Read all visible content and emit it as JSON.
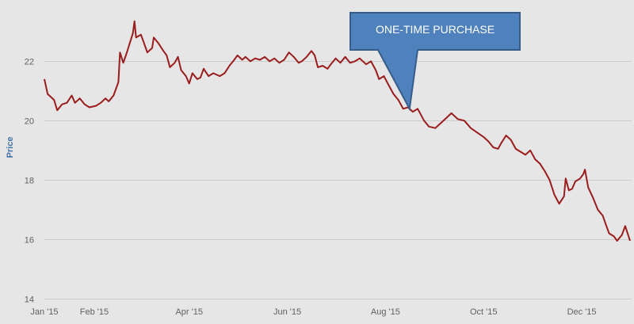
{
  "chart_data": {
    "type": "line",
    "ylabel": "Price",
    "ylim": [
      14,
      23.8
    ],
    "yticks": [
      14,
      16,
      18,
      20,
      22
    ],
    "xticks": [
      {
        "label": "Jan '15",
        "x": "2015-01-01"
      },
      {
        "label": "Feb '15",
        "x": "2015-02-01"
      },
      {
        "label": "Apr '15",
        "x": "2015-04-01"
      },
      {
        "label": "Jun '15",
        "x": "2015-06-01"
      },
      {
        "label": "Aug '15",
        "x": "2015-08-01"
      },
      {
        "label": "Oct '15",
        "x": "2015-10-01"
      },
      {
        "label": "Dec '15",
        "x": "2015-12-01"
      }
    ],
    "xlim": [
      "2015-01-01",
      "2015-12-31"
    ],
    "grid": "horizontal",
    "legend": "none",
    "series": [
      {
        "color": "#9b1c1c",
        "points": [
          [
            "2015-01-01",
            21.4
          ],
          [
            "2015-01-03",
            20.9
          ],
          [
            "2015-01-07",
            20.7
          ],
          [
            "2015-01-09",
            20.35
          ],
          [
            "2015-01-12",
            20.55
          ],
          [
            "2015-01-15",
            20.6
          ],
          [
            "2015-01-18",
            20.85
          ],
          [
            "2015-01-20",
            20.6
          ],
          [
            "2015-01-23",
            20.75
          ],
          [
            "2015-01-26",
            20.55
          ],
          [
            "2015-01-29",
            20.45
          ],
          [
            "2015-02-02",
            20.5
          ],
          [
            "2015-02-05",
            20.6
          ],
          [
            "2015-02-08",
            20.75
          ],
          [
            "2015-02-10",
            20.65
          ],
          [
            "2015-02-13",
            20.85
          ],
          [
            "2015-02-16",
            21.3
          ],
          [
            "2015-02-17",
            22.3
          ],
          [
            "2015-02-19",
            21.95
          ],
          [
            "2015-02-21",
            22.25
          ],
          [
            "2015-02-23",
            22.6
          ],
          [
            "2015-02-25",
            22.95
          ],
          [
            "2015-02-26",
            23.35
          ],
          [
            "2015-02-27",
            22.8
          ],
          [
            "2015-03-02",
            22.9
          ],
          [
            "2015-03-04",
            22.6
          ],
          [
            "2015-03-06",
            22.3
          ],
          [
            "2015-03-09",
            22.45
          ],
          [
            "2015-03-10",
            22.8
          ],
          [
            "2015-03-13",
            22.6
          ],
          [
            "2015-03-16",
            22.35
          ],
          [
            "2015-03-18",
            22.2
          ],
          [
            "2015-03-20",
            21.8
          ],
          [
            "2015-03-23",
            21.95
          ],
          [
            "2015-03-25",
            22.15
          ],
          [
            "2015-03-27",
            21.7
          ],
          [
            "2015-03-30",
            21.5
          ],
          [
            "2015-04-01",
            21.25
          ],
          [
            "2015-04-03",
            21.6
          ],
          [
            "2015-04-06",
            21.4
          ],
          [
            "2015-04-08",
            21.45
          ],
          [
            "2015-04-10",
            21.75
          ],
          [
            "2015-04-13",
            21.5
          ],
          [
            "2015-04-16",
            21.6
          ],
          [
            "2015-04-20",
            21.5
          ],
          [
            "2015-04-23",
            21.6
          ],
          [
            "2015-04-26",
            21.85
          ],
          [
            "2015-04-29",
            22.05
          ],
          [
            "2015-05-01",
            22.2
          ],
          [
            "2015-05-04",
            22.05
          ],
          [
            "2015-05-06",
            22.15
          ],
          [
            "2015-05-09",
            22.0
          ],
          [
            "2015-05-12",
            22.1
          ],
          [
            "2015-05-15",
            22.05
          ],
          [
            "2015-05-18",
            22.15
          ],
          [
            "2015-05-21",
            22.0
          ],
          [
            "2015-05-24",
            22.1
          ],
          [
            "2015-05-27",
            21.95
          ],
          [
            "2015-05-30",
            22.05
          ],
          [
            "2015-06-02",
            22.3
          ],
          [
            "2015-06-05",
            22.15
          ],
          [
            "2015-06-08",
            21.95
          ],
          [
            "2015-06-10",
            22.0
          ],
          [
            "2015-06-13",
            22.15
          ],
          [
            "2015-06-16",
            22.35
          ],
          [
            "2015-06-18",
            22.2
          ],
          [
            "2015-06-20",
            21.8
          ],
          [
            "2015-06-23",
            21.85
          ],
          [
            "2015-06-26",
            21.75
          ],
          [
            "2015-06-28",
            21.9
          ],
          [
            "2015-07-01",
            22.1
          ],
          [
            "2015-07-04",
            21.95
          ],
          [
            "2015-07-07",
            22.15
          ],
          [
            "2015-07-10",
            21.95
          ],
          [
            "2015-07-13",
            22.0
          ],
          [
            "2015-07-16",
            22.1
          ],
          [
            "2015-07-20",
            21.9
          ],
          [
            "2015-07-23",
            22.0
          ],
          [
            "2015-07-26",
            21.7
          ],
          [
            "2015-07-28",
            21.4
          ],
          [
            "2015-07-31",
            21.5
          ],
          [
            "2015-08-03",
            21.2
          ],
          [
            "2015-08-06",
            20.9
          ],
          [
            "2015-08-09",
            20.7
          ],
          [
            "2015-08-12",
            20.4
          ],
          [
            "2015-08-15",
            20.45
          ],
          [
            "2015-08-18",
            20.3
          ],
          [
            "2015-08-21",
            20.4
          ],
          [
            "2015-08-23",
            20.2
          ],
          [
            "2015-08-25",
            20.0
          ],
          [
            "2015-08-28",
            19.8
          ],
          [
            "2015-09-01",
            19.75
          ],
          [
            "2015-09-04",
            19.9
          ],
          [
            "2015-09-08",
            20.1
          ],
          [
            "2015-09-11",
            20.25
          ],
          [
            "2015-09-15",
            20.05
          ],
          [
            "2015-09-19",
            20.0
          ],
          [
            "2015-09-23",
            19.75
          ],
          [
            "2015-09-27",
            19.6
          ],
          [
            "2015-10-01",
            19.45
          ],
          [
            "2015-10-04",
            19.3
          ],
          [
            "2015-10-07",
            19.1
          ],
          [
            "2015-10-10",
            19.05
          ],
          [
            "2015-10-12",
            19.25
          ],
          [
            "2015-10-15",
            19.5
          ],
          [
            "2015-10-18",
            19.35
          ],
          [
            "2015-10-21",
            19.05
          ],
          [
            "2015-10-24",
            18.95
          ],
          [
            "2015-10-27",
            18.85
          ],
          [
            "2015-10-30",
            19.0
          ],
          [
            "2015-11-02",
            18.7
          ],
          [
            "2015-11-05",
            18.55
          ],
          [
            "2015-11-08",
            18.3
          ],
          [
            "2015-11-11",
            18.0
          ],
          [
            "2015-11-14",
            17.5
          ],
          [
            "2015-11-17",
            17.2
          ],
          [
            "2015-11-20",
            17.45
          ],
          [
            "2015-11-21",
            18.05
          ],
          [
            "2015-11-23",
            17.65
          ],
          [
            "2015-11-25",
            17.7
          ],
          [
            "2015-11-27",
            17.95
          ],
          [
            "2015-11-30",
            18.05
          ],
          [
            "2015-12-02",
            18.2
          ],
          [
            "2015-12-03",
            18.35
          ],
          [
            "2015-12-05",
            17.75
          ],
          [
            "2015-12-08",
            17.4
          ],
          [
            "2015-12-11",
            17.0
          ],
          [
            "2015-12-14",
            16.8
          ],
          [
            "2015-12-16",
            16.5
          ],
          [
            "2015-12-18",
            16.2
          ],
          [
            "2015-12-21",
            16.1
          ],
          [
            "2015-12-23",
            15.95
          ],
          [
            "2015-12-26",
            16.15
          ],
          [
            "2015-12-28",
            16.45
          ],
          [
            "2015-12-31",
            15.95
          ]
        ]
      }
    ],
    "annotations": [
      {
        "text": "ONE-TIME PURCHASE",
        "x": "2015-08-16",
        "y": 20.4,
        "fill": "#4f81bd",
        "border": "#385d8a"
      }
    ]
  }
}
